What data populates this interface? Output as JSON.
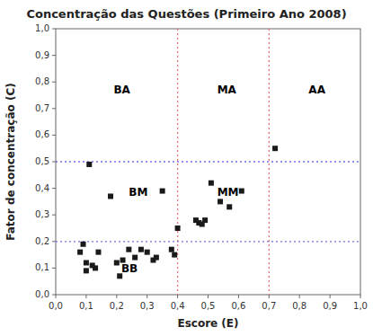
{
  "chart_data": {
    "type": "scatter",
    "title": "Concentração das Questões (Primeiro Ano 2008)",
    "xlabel": "Escore (E)",
    "ylabel": "Fator de concentração (C)",
    "xlim": [
      0.0,
      1.0
    ],
    "ylim": [
      0.0,
      1.0
    ],
    "xticks": [
      {
        "value": 0.0,
        "label": "0,0"
      },
      {
        "value": 0.1,
        "label": "0,1"
      },
      {
        "value": 0.2,
        "label": "0,2"
      },
      {
        "value": 0.3,
        "label": "0,3"
      },
      {
        "value": 0.4,
        "label": "0,4"
      },
      {
        "value": 0.5,
        "label": "0,5"
      },
      {
        "value": 0.6,
        "label": "0,6"
      },
      {
        "value": 0.7,
        "label": "0,7"
      },
      {
        "value": 0.8,
        "label": "0,8"
      },
      {
        "value": 0.9,
        "label": "0,9"
      },
      {
        "value": 1.0,
        "label": "1,0"
      }
    ],
    "yticks": [
      {
        "value": 0.0,
        "label": "0,0"
      },
      {
        "value": 0.1,
        "label": "0,1"
      },
      {
        "value": 0.2,
        "label": "0,2"
      },
      {
        "value": 0.3,
        "label": "0,3"
      },
      {
        "value": 0.4,
        "label": "0,4"
      },
      {
        "value": 0.5,
        "label": "0,5"
      },
      {
        "value": 0.6,
        "label": "0,6"
      },
      {
        "value": 0.7,
        "label": "0,7"
      },
      {
        "value": 0.8,
        "label": "0,8"
      },
      {
        "value": 0.9,
        "label": "0,9"
      },
      {
        "value": 1.0,
        "label": "1,0"
      }
    ],
    "grid": false,
    "marker": "square",
    "color": "#1a1a1a",
    "x": [
      0.08,
      0.09,
      0.1,
      0.1,
      0.11,
      0.12,
      0.13,
      0.14,
      0.18,
      0.2,
      0.21,
      0.22,
      0.24,
      0.26,
      0.28,
      0.3,
      0.32,
      0.33,
      0.35,
      0.38,
      0.39,
      0.4,
      0.46,
      0.47,
      0.48,
      0.49,
      0.51,
      0.54,
      0.57,
      0.61,
      0.72
    ],
    "values": [
      0.16,
      0.19,
      0.12,
      0.09,
      0.49,
      0.11,
      0.1,
      0.16,
      0.37,
      0.12,
      0.07,
      0.13,
      0.17,
      0.14,
      0.17,
      0.16,
      0.13,
      0.14,
      0.39,
      0.17,
      0.15,
      0.25,
      0.28,
      0.27,
      0.265,
      0.28,
      0.42,
      0.35,
      0.33,
      0.39,
      0.55
    ],
    "vlines": {
      "values": [
        0.4,
        0.7
      ],
      "color": "#e87070"
    },
    "hlines": {
      "values": [
        0.2,
        0.5
      ],
      "color": "#7070e8"
    },
    "annotations": [
      {
        "text": "BA",
        "x": 0.19,
        "y": 0.77
      },
      {
        "text": "MA",
        "x": 0.53,
        "y": 0.77
      },
      {
        "text": "AA",
        "x": 0.83,
        "y": 0.77
      },
      {
        "text": "BM",
        "x": 0.24,
        "y": 0.385
      },
      {
        "text": "MM",
        "x": 0.53,
        "y": 0.385
      },
      {
        "text": "BB",
        "x": 0.215,
        "y": 0.095
      }
    ]
  }
}
